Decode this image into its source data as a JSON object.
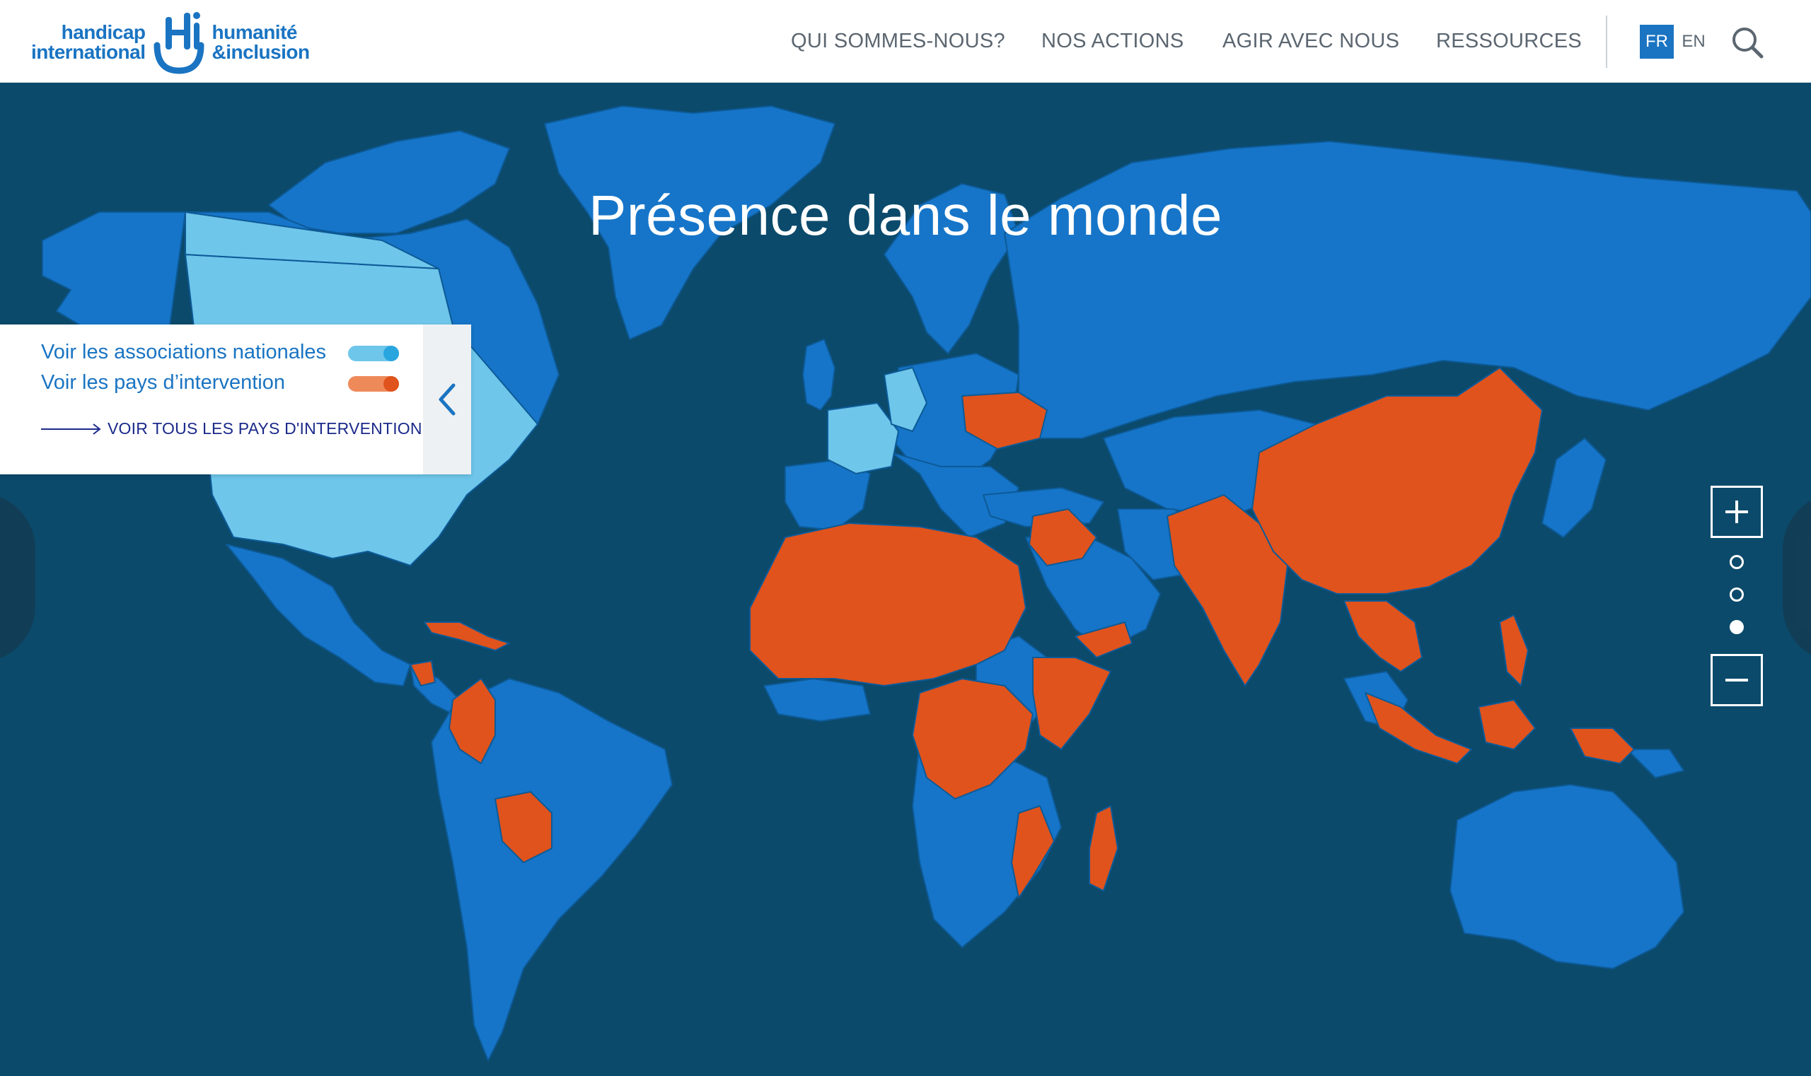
{
  "header": {
    "logo": {
      "left_top": "handicap",
      "left_bottom": "international",
      "right_top": "humanité",
      "right_bottom": "&inclusion"
    },
    "nav": [
      {
        "label": "QUI SOMMES-NOUS?"
      },
      {
        "label": "NOS ACTIONS"
      },
      {
        "label": "AGIR AVEC NOUS"
      },
      {
        "label": "RESSOURCES"
      }
    ],
    "lang": {
      "active": "FR",
      "other": "EN"
    }
  },
  "map": {
    "title": "Présence dans le monde",
    "colors": {
      "ocean": "#0b4a6b",
      "land": "#1675c8",
      "national_association": "#6ec6ea",
      "intervention": "#e0531c"
    }
  },
  "legend": {
    "national": "Voir les associations nationales",
    "intervention": "Voir les pays d’intervention",
    "link": "VOIR TOUS LES PAYS D'INTERVENTION"
  },
  "zoom": {
    "level_active": 3,
    "levels": 3
  }
}
